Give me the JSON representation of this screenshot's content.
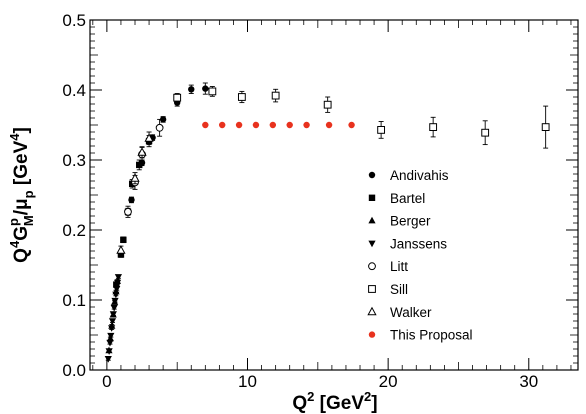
{
  "chart_data": {
    "type": "scatter",
    "xlabel": {
      "base": "Q",
      "sup": "2",
      "unit_pre": " [GeV",
      "unit_sup": "2",
      "unit_post": "]"
    },
    "ylabel": {
      "p1": "Q",
      "p1_sup": "4",
      "p2": "G",
      "p2_sup": "p",
      "p2_sub": "M",
      "p3": "/μ",
      "p3_sub": "p",
      "unit_pre": " [GeV",
      "unit_sup": "4",
      "unit_post": "]"
    },
    "xlim": [
      -1.2,
      33.5
    ],
    "ylim": [
      0.0,
      0.5
    ],
    "xticks": [
      0,
      10,
      20,
      30
    ],
    "yticks": [
      0.0,
      0.1,
      0.2,
      0.3,
      0.4,
      0.5
    ],
    "ytick_labels": [
      "0.0",
      "0.1",
      "0.2",
      "0.3",
      "0.4",
      "0.5"
    ],
    "legend_position": "right",
    "series": [
      {
        "name": "Andivahis",
        "marker": "filled-circle",
        "color": "#000000",
        "points": [
          [
            1.75,
            0.243,
            0.004
          ],
          [
            2.5,
            0.296,
            0.004
          ],
          [
            3.25,
            0.332,
            0.004
          ],
          [
            4.0,
            0.358,
            0.004
          ],
          [
            5.0,
            0.382,
            0.005
          ],
          [
            6.0,
            0.401,
            0.006
          ],
          [
            7.0,
            0.402,
            0.008
          ]
        ]
      },
      {
        "name": "Bartel",
        "marker": "filled-square",
        "color": "#000000",
        "points": [
          [
            0.67,
            0.122,
            0.003
          ],
          [
            1.0,
            0.165,
            0.004
          ],
          [
            1.17,
            0.186,
            0.004
          ],
          [
            1.5,
            0.226,
            0.005
          ],
          [
            1.8,
            0.266,
            0.006
          ],
          [
            2.3,
            0.293,
            0.007
          ],
          [
            3.0,
            0.327,
            0.008
          ]
        ]
      },
      {
        "name": "Berger",
        "marker": "filled-triangle-up",
        "color": "#000000",
        "points": [
          [
            0.15,
            0.028,
            0.002
          ],
          [
            0.25,
            0.045,
            0.002
          ],
          [
            0.35,
            0.063,
            0.002
          ],
          [
            0.45,
            0.079,
            0.002
          ],
          [
            0.55,
            0.097,
            0.002
          ],
          [
            0.65,
            0.112,
            0.002
          ],
          [
            0.75,
            0.127,
            0.002
          ]
        ]
      },
      {
        "name": "Janssens",
        "marker": "filled-triangle-down",
        "color": "#000000",
        "points": [
          [
            0.1,
            0.016,
            0.002
          ],
          [
            0.16,
            0.027,
            0.002
          ],
          [
            0.22,
            0.039,
            0.002
          ],
          [
            0.28,
            0.049,
            0.002
          ],
          [
            0.34,
            0.06,
            0.002
          ],
          [
            0.4,
            0.07,
            0.002
          ],
          [
            0.46,
            0.08,
            0.002
          ],
          [
            0.52,
            0.089,
            0.002
          ],
          [
            0.58,
            0.099,
            0.002
          ],
          [
            0.64,
            0.108,
            0.002
          ],
          [
            0.7,
            0.116,
            0.002
          ],
          [
            0.76,
            0.125,
            0.002
          ],
          [
            0.82,
            0.133,
            0.002
          ]
        ]
      },
      {
        "name": "Litt",
        "marker": "open-circle",
        "color": "#000000",
        "points": [
          [
            1.5,
            0.226,
            0.008
          ],
          [
            2.0,
            0.268,
            0.01
          ],
          [
            2.5,
            0.308,
            0.01
          ],
          [
            3.75,
            0.346,
            0.012
          ]
        ]
      },
      {
        "name": "Sill",
        "marker": "open-square",
        "color": "#000000",
        "points": [
          [
            5.0,
            0.389,
            0.006
          ],
          [
            7.5,
            0.398,
            0.007
          ],
          [
            9.6,
            0.39,
            0.008
          ],
          [
            12.0,
            0.392,
            0.009
          ],
          [
            15.7,
            0.379,
            0.011
          ],
          [
            19.5,
            0.343,
            0.012
          ],
          [
            23.2,
            0.347,
            0.014
          ],
          [
            26.9,
            0.339,
            0.017
          ],
          [
            31.2,
            0.347,
            0.03
          ]
        ]
      },
      {
        "name": "Walker",
        "marker": "open-triangle-up",
        "color": "#000000",
        "points": [
          [
            1.0,
            0.171,
            0.006
          ],
          [
            2.0,
            0.274,
            0.008
          ],
          [
            2.5,
            0.311,
            0.008
          ],
          [
            3.0,
            0.331,
            0.009
          ]
        ]
      },
      {
        "name": "This Proposal",
        "marker": "filled-circle",
        "color": "#e8321e",
        "points": [
          [
            7.0,
            0.35,
            0
          ],
          [
            8.2,
            0.35,
            0
          ],
          [
            9.4,
            0.35,
            0
          ],
          [
            10.6,
            0.35,
            0
          ],
          [
            11.8,
            0.35,
            0
          ],
          [
            13.0,
            0.35,
            0
          ],
          [
            14.2,
            0.35,
            0
          ],
          [
            15.8,
            0.35,
            0
          ],
          [
            17.4,
            0.35,
            0
          ]
        ]
      }
    ]
  }
}
